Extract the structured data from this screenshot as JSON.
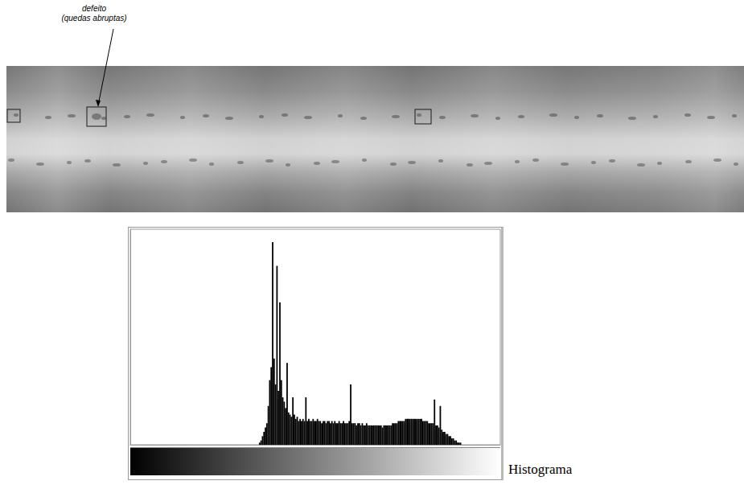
{
  "chart_data": {
    "type": "histogram",
    "bins": [
      88,
      89,
      90,
      91,
      92,
      93,
      94,
      95,
      96,
      97,
      98,
      99,
      100,
      101,
      102,
      103,
      104,
      105,
      106,
      107,
      108,
      109,
      110,
      111,
      112,
      113,
      114,
      115,
      116,
      117,
      118,
      119,
      120,
      121,
      122,
      123,
      124,
      125,
      126,
      127,
      128,
      129,
      130,
      131,
      132,
      133,
      134,
      135,
      136,
      137,
      138,
      139,
      140,
      141,
      142,
      143,
      144,
      145,
      146,
      147,
      148,
      149,
      150,
      151,
      152,
      153,
      154,
      155,
      156,
      157,
      158,
      159,
      160,
      161,
      162,
      163,
      164,
      165,
      166,
      167,
      168,
      169,
      170,
      171,
      172,
      173,
      174,
      175,
      176,
      177,
      178,
      179,
      180,
      181,
      182,
      183,
      184,
      185,
      186,
      187,
      188,
      189,
      190,
      191,
      192,
      193,
      194,
      195,
      196,
      197,
      198,
      199,
      200,
      201,
      202,
      203,
      204,
      205,
      206,
      207,
      208,
      209,
      210,
      211,
      212,
      213,
      214,
      215,
      216,
      217,
      218,
      219,
      220,
      221,
      222,
      223,
      224,
      225,
      226,
      227,
      228,
      229,
      230
    ],
    "values": [
      0,
      1,
      2,
      4,
      6,
      8,
      10,
      18,
      30,
      36,
      94,
      40,
      28,
      83,
      25,
      66,
      30,
      22,
      20,
      17,
      38,
      15,
      14,
      13,
      22,
      14,
      12,
      13,
      11,
      12,
      11,
      12,
      11,
      22,
      11,
      12,
      11,
      11,
      12,
      11,
      11,
      12,
      11,
      11,
      10,
      11,
      11,
      10,
      11,
      11,
      10,
      11,
      10,
      11,
      10,
      10,
      11,
      10,
      10,
      11,
      10,
      10,
      10,
      11,
      28,
      10,
      10,
      10,
      9,
      10,
      10,
      9,
      10,
      9,
      9,
      10,
      9,
      9,
      9,
      9,
      9,
      9,
      9,
      9,
      9,
      9,
      8,
      9,
      9,
      9,
      9,
      9,
      9,
      10,
      10,
      10,
      10,
      11,
      11,
      11,
      11,
      11,
      12,
      12,
      12,
      12,
      12,
      12,
      12,
      12,
      12,
      12,
      12,
      12,
      11,
      11,
      11,
      11,
      10,
      10,
      10,
      10,
      21,
      9,
      9,
      8,
      18,
      7,
      6,
      6,
      5,
      5,
      4,
      4,
      3,
      3,
      2,
      2,
      1,
      1,
      1,
      0
    ],
    "xlim": [
      0,
      256
    ],
    "ylim": [
      0,
      100
    ],
    "color": "#000000",
    "grid": false,
    "tick_labels": false
  },
  "annotation": [
    "defeito",
    "(quedas abruptas)"
  ],
  "caption": "Histograma"
}
